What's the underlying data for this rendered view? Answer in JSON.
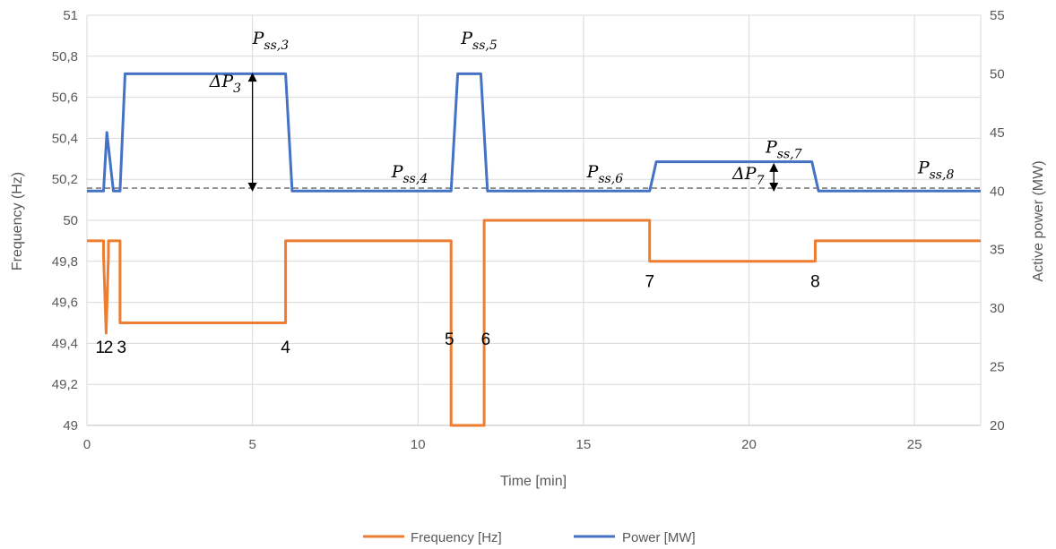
{
  "chart_data": {
    "type": "line",
    "xlabel": "Time [min]",
    "ylabel_left": "Frequency (Hz)",
    "ylabel_right": "Active power (MW)",
    "xlim": [
      0,
      27
    ],
    "ylim_left": [
      49,
      51
    ],
    "ylim_right": [
      20,
      55
    ],
    "x_ticks": [
      "0",
      "5",
      "10",
      "15",
      "20",
      "25"
    ],
    "x_tick_values": [
      0,
      5,
      10,
      15,
      20,
      25
    ],
    "y_left_ticks": [
      "49",
      "49,2",
      "49,4",
      "49,6",
      "49,8",
      "50",
      "50,2",
      "50,4",
      "50,6",
      "50,8",
      "51"
    ],
    "y_left_tick_values": [
      49,
      49.2,
      49.4,
      49.6,
      49.8,
      50,
      50.2,
      50.4,
      50.6,
      50.8,
      51
    ],
    "y_right_ticks": [
      "20",
      "25",
      "30",
      "35",
      "40",
      "45",
      "50",
      "55"
    ],
    "y_right_tick_values": [
      20,
      25,
      30,
      35,
      40,
      45,
      50,
      55
    ],
    "grid": true,
    "legend_position": "bottom",
    "series": [
      {
        "name": "Frequency [Hz]",
        "axis": "left",
        "color": "#ED7D31",
        "x": [
          0,
          0.5,
          0.5,
          0.58,
          0.65,
          0.65,
          1.0,
          1.0,
          6.0,
          6.0,
          11.0,
          11.0,
          12.0,
          12.0,
          17.0,
          17.0,
          22.0,
          22.0,
          27
        ],
        "y": [
          49.9,
          49.9,
          49.83,
          49.45,
          49.83,
          49.9,
          49.9,
          49.5,
          49.5,
          49.9,
          49.9,
          49.0,
          49.0,
          50.0,
          50.0,
          49.8,
          49.8,
          49.9,
          49.9
        ]
      },
      {
        "name": "Power [MW]",
        "axis": "right",
        "color": "#4472C4",
        "x": [
          0,
          0.5,
          0.6,
          0.8,
          1.0,
          1.15,
          6.0,
          6.2,
          11.0,
          11.2,
          11.9,
          12.1,
          17.0,
          17.2,
          21.9,
          22.1,
          27
        ],
        "y": [
          40,
          40,
          45,
          40,
          40,
          50,
          50,
          40,
          40,
          50,
          50,
          40,
          40,
          42.5,
          42.5,
          40,
          40
        ]
      }
    ],
    "reference_line": {
      "axis": "right",
      "value": 40.25,
      "color": "#7F7F7F"
    },
    "point_labels": [
      {
        "text": "1",
        "x": 0.4,
        "y": 49.38
      },
      {
        "text": "2",
        "x": 0.65,
        "y": 49.38
      },
      {
        "text": "3",
        "x": 1.05,
        "y": 49.38
      },
      {
        "text": "4",
        "x": 6.0,
        "y": 49.38
      },
      {
        "text": "5",
        "x": 10.95,
        "y": 49.42
      },
      {
        "text": "6",
        "x": 12.05,
        "y": 49.42
      },
      {
        "text": "7",
        "x": 17.0,
        "y": 49.7
      },
      {
        "text": "8",
        "x": 22.0,
        "y": 49.7
      }
    ],
    "annotations": [
      {
        "base": "P",
        "sub": "ss,3",
        "x": 5.0,
        "y": 50.86
      },
      {
        "base": "P",
        "sub": "ss,5",
        "x": 11.3,
        "y": 50.86
      },
      {
        "base": "P",
        "sub": "ss,4",
        "x": 9.2,
        "y": 50.21
      },
      {
        "base": "P",
        "sub": "ss,6",
        "x": 15.1,
        "y": 50.21
      },
      {
        "base": "P",
        "sub": "ss,7",
        "x": 20.5,
        "y": 50.33
      },
      {
        "base": "P",
        "sub": "ss,8",
        "x": 25.1,
        "y": 50.23
      },
      {
        "base": "ΔP",
        "sub": "3",
        "x": 3.7,
        "y": 50.65
      },
      {
        "base": "ΔP",
        "sub": "7",
        "x": 19.5,
        "y": 50.2
      }
    ],
    "delta_arrows": [
      {
        "x": 5.0,
        "y_from": 50.72,
        "y_to": 50.14
      },
      {
        "x": 20.75,
        "y_from": 50.28,
        "y_to": 50.14
      }
    ]
  }
}
